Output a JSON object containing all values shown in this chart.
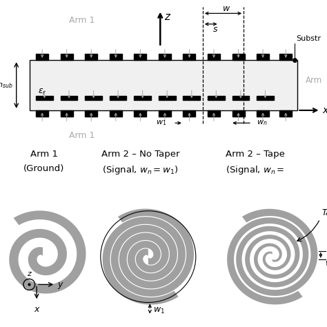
{
  "bg_color": "#ffffff",
  "gray_color": "#aaaaaa",
  "spiral_gray": "#a0a0a0",
  "black": "#000000",
  "figsize": [
    4.74,
    4.74
  ],
  "dpi": 100,
  "labels": {
    "arm1": "Arm 1",
    "arm2_right": "Arm",
    "substr": "Substr",
    "eps_r": "$\\varepsilon_r$",
    "h_sub": "$h_{sub}$",
    "z_axis": "z",
    "x_axis": "x",
    "w_lbl": "w",
    "s_lbl": "s",
    "w1_lbl": "$w_1$",
    "wn_lbl": "$w_n$",
    "arm1_ground": "Arm 1",
    "arm1_ground2": "(Ground)",
    "arm2_notaper": "Arm 2 – No Taper",
    "arm2_notaper2": "(Signal, $w_n = w_1$)",
    "arm2_taper": "Arm 2 – Tape",
    "arm2_taper2": "(Signal, $w_n =$",
    "y_lbl": "y",
    "x_lbl2": "x",
    "z_lbl2": "z",
    "w1_spiral": "$w_1$",
    "wn_spiral": "$w_n$",
    "taper_lbl": "Taper"
  }
}
